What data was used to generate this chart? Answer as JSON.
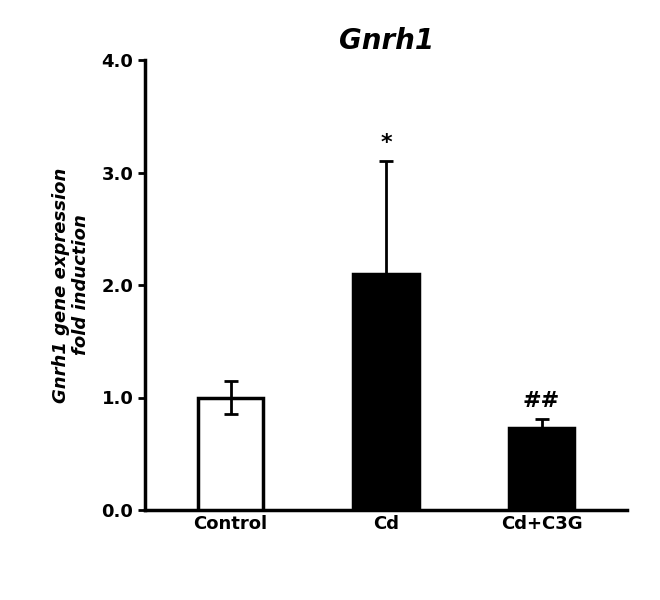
{
  "title": "Gnrh1",
  "categories": [
    "Control",
    "Cd",
    "Cd+C3G"
  ],
  "values": [
    1.0,
    2.1,
    0.73
  ],
  "errors": [
    0.15,
    1.0,
    0.08
  ],
  "bar_colors": [
    "white",
    "black",
    "black"
  ],
  "bar_edge_colors": [
    "black",
    "black",
    "black"
  ],
  "bar_width": 0.42,
  "ylabel_line1": "Gnrh1 gene expression",
  "ylabel_line2": "fold induction",
  "ylim": [
    0.0,
    4.0
  ],
  "yticks": [
    0.0,
    1.0,
    2.0,
    3.0,
    4.0
  ],
  "significance": [
    "",
    "*",
    "##"
  ],
  "sig_fontsize": 16,
  "title_fontsize": 20,
  "ylabel_fontsize": 13,
  "tick_fontsize": 13,
  "xlabel_fontsize": 13,
  "background_color": "#ffffff",
  "error_capsize": 5,
  "error_linewidth": 2.0,
  "bar_linewidth": 2.5,
  "x_positions": [
    0.0,
    1.0,
    2.0
  ],
  "xlim": [
    -0.55,
    2.55
  ]
}
